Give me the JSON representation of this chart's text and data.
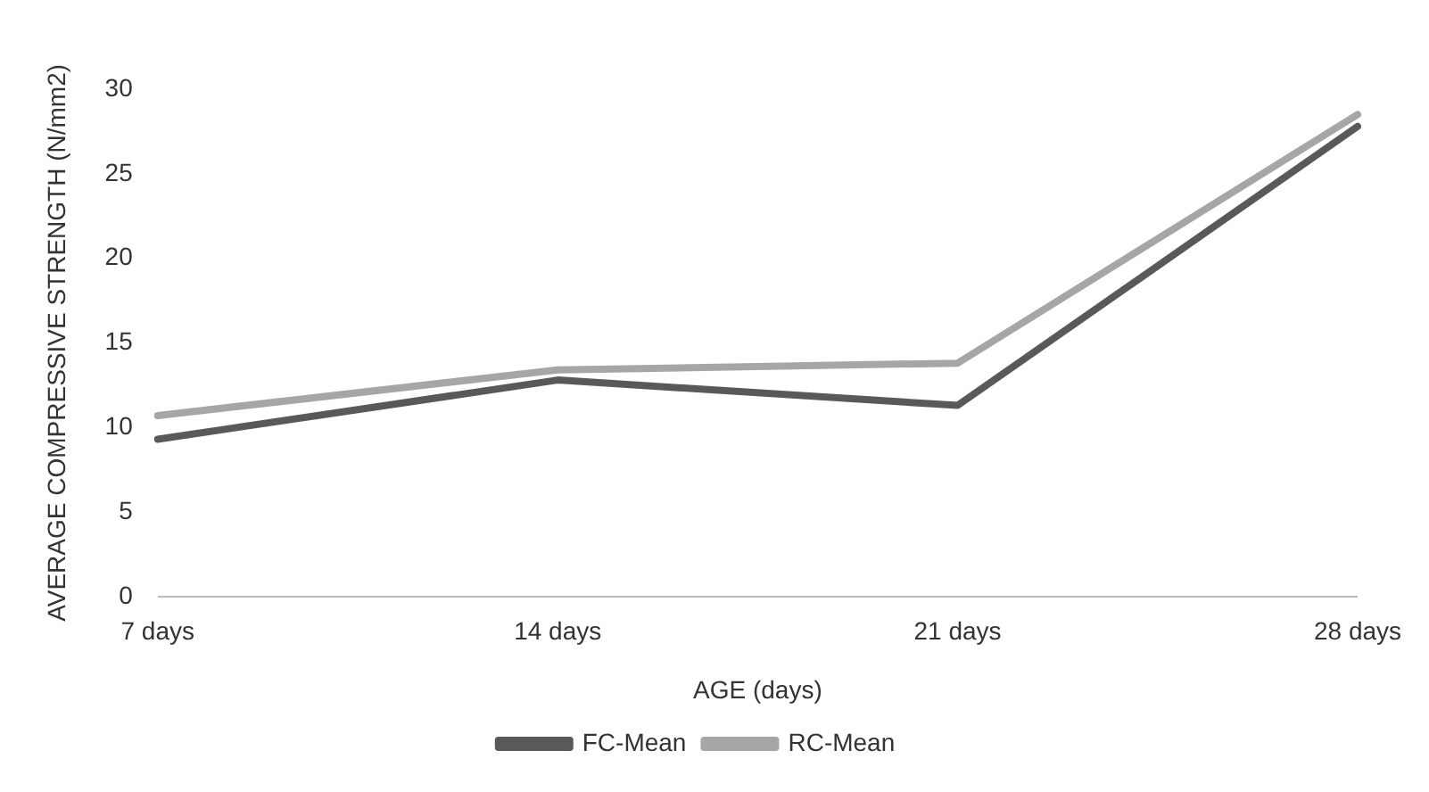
{
  "chart_data": {
    "type": "line",
    "xlabel": "AGE (days)",
    "ylabel": "AVERAGE COMPRESSIVE STRENGTH (N/mm2)",
    "categories": [
      "7 days",
      "14 days",
      "21 days",
      "28 days"
    ],
    "series": [
      {
        "name": "FC-Mean",
        "color": "#595959",
        "values": [
          9.3,
          12.8,
          11.3,
          27.8
        ]
      },
      {
        "name": "RC-Mean",
        "color": "#a6a6a6",
        "values": [
          10.7,
          13.4,
          13.8,
          28.5
        ]
      }
    ],
    "ylim": [
      0,
      30
    ],
    "yticks": [
      0,
      5,
      10,
      15,
      20,
      25,
      30
    ],
    "grid": false,
    "legend": "bottom",
    "marker": "none",
    "line_style": "solid"
  }
}
